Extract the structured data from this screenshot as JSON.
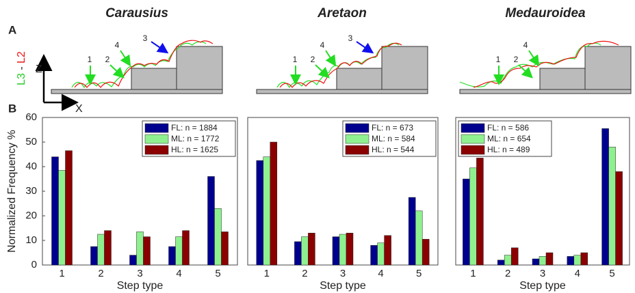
{
  "figure": {
    "panel_labels": [
      "A",
      "B"
    ],
    "axis_z": "Z",
    "axis_x": "X",
    "leg_a": "L3",
    "leg_sep": " - ",
    "leg_b": "L2"
  },
  "chart_data": [
    {
      "type": "bar",
      "title": "Carausius",
      "annotations": [
        "1",
        "2",
        "3",
        "4"
      ],
      "categories": [
        "1",
        "2",
        "3",
        "4",
        "5"
      ],
      "xlabel": "Step type",
      "ylabel": "Normalized Frequency %",
      "ylim": [
        0,
        60
      ],
      "yticks": [
        0,
        10,
        20,
        30,
        40,
        50,
        60
      ],
      "legend": "upper right",
      "series": [
        {
          "name": "FL: n = 1884",
          "color": "#00008f",
          "values": [
            44,
            7.5,
            4,
            7.5,
            36
          ]
        },
        {
          "name": "ML: n = 1772",
          "color": "#8ff08f",
          "values": [
            38.5,
            12.5,
            13.5,
            11.5,
            23
          ]
        },
        {
          "name": "HL: n = 1625",
          "color": "#8b0000",
          "values": [
            46.5,
            14,
            11.5,
            14,
            13.5
          ]
        }
      ]
    },
    {
      "type": "bar",
      "title": "Aretaon",
      "annotations": [
        "1",
        "2",
        "3",
        "4"
      ],
      "categories": [
        "1",
        "2",
        "3",
        "4",
        "5"
      ],
      "xlabel": "Step type",
      "ylim": [
        0,
        60
      ],
      "legend": "upper right",
      "series": [
        {
          "name": "FL: n = 673",
          "color": "#00008f",
          "values": [
            42.5,
            9.5,
            11.5,
            8,
            27.5
          ]
        },
        {
          "name": "ML: n = 584",
          "color": "#8ff08f",
          "values": [
            44,
            11.5,
            12.5,
            9,
            22
          ]
        },
        {
          "name": "HL: n = 544",
          "color": "#8b0000",
          "values": [
            50,
            13,
            13,
            12,
            10.5
          ]
        }
      ]
    },
    {
      "type": "bar",
      "title": "Medauroidea",
      "annotations": [
        "1",
        "2",
        "4"
      ],
      "categories": [
        "1",
        "2",
        "3",
        "4",
        "5"
      ],
      "xlabel": "Step type",
      "ylim": [
        0,
        60
      ],
      "legend": "upper left",
      "series": [
        {
          "name": "FL: n = 586",
          "color": "#00008f",
          "values": [
            35,
            2,
            2.5,
            3.5,
            55.5
          ]
        },
        {
          "name": "ML: n = 654",
          "color": "#8ff08f",
          "values": [
            39.5,
            4,
            3.5,
            4,
            48
          ]
        },
        {
          "name": "HL: n = 489",
          "color": "#8b0000",
          "values": [
            43.5,
            7,
            5,
            5,
            38
          ]
        }
      ]
    }
  ]
}
